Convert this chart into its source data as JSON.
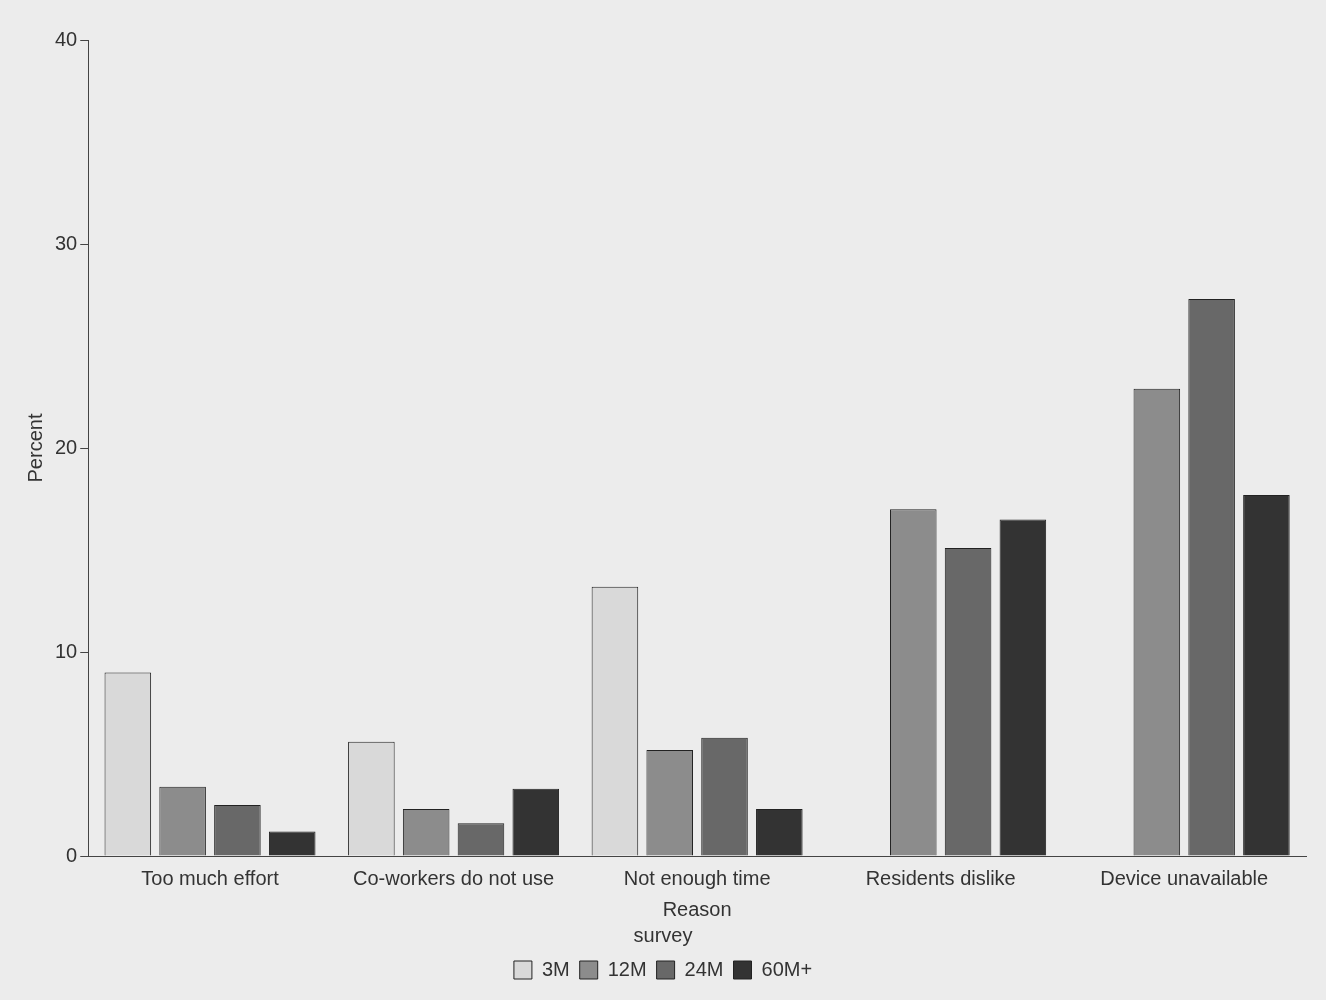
{
  "chart_data": {
    "type": "bar",
    "xlabel": "Reason",
    "ylabel": "Percent",
    "legend_title": "survey",
    "categories": [
      "Too much effort",
      "Co-workers do not use",
      "Not enough time",
      "Residents dislike",
      "Device unavailable"
    ],
    "series": [
      {
        "name": "3M",
        "color": "#d9d9d9",
        "values": [
          9.0,
          5.6,
          13.2,
          null,
          null
        ]
      },
      {
        "name": "12M",
        "color": "#8c8c8c",
        "values": [
          3.4,
          2.3,
          5.2,
          17.0,
          22.9
        ]
      },
      {
        "name": "24M",
        "color": "#686868",
        "values": [
          2.5,
          1.6,
          5.8,
          15.1,
          27.3
        ]
      },
      {
        "name": "60M+",
        "color": "#333333",
        "values": [
          1.2,
          3.3,
          2.3,
          16.5,
          17.7
        ]
      }
    ],
    "ylim": [
      0,
      40
    ],
    "yticks": [
      0,
      10,
      20,
      30,
      40
    ],
    "grid": false,
    "legend": "bottom"
  }
}
